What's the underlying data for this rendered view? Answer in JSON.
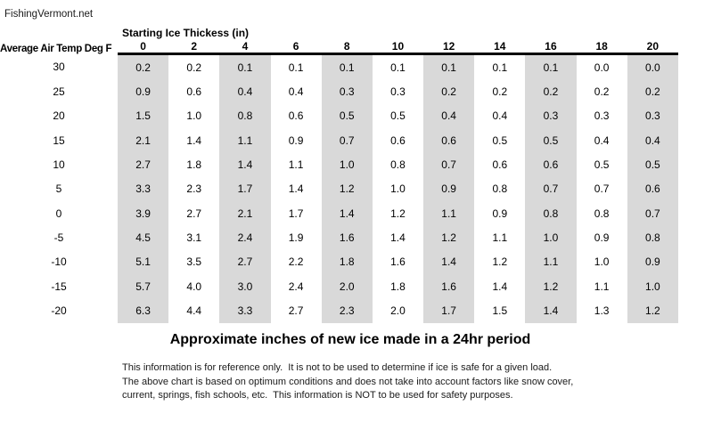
{
  "site_label": "FishingVermont.net",
  "chart_data": {
    "type": "table",
    "title": "Approximate inches of new ice made in a 24hr period",
    "column_group_label": "Starting Ice Thickess (in)",
    "row_group_label": "Average Air Temp Deg F",
    "columns": [
      "0",
      "2",
      "4",
      "6",
      "8",
      "10",
      "12",
      "14",
      "16",
      "18",
      "20"
    ],
    "rows": [
      {
        "temp": "30",
        "values": [
          "0.2",
          "0.2",
          "0.1",
          "0.1",
          "0.1",
          "0.1",
          "0.1",
          "0.1",
          "0.1",
          "0.0",
          "0.0"
        ]
      },
      {
        "temp": "25",
        "values": [
          "0.9",
          "0.6",
          "0.4",
          "0.4",
          "0.3",
          "0.3",
          "0.2",
          "0.2",
          "0.2",
          "0.2",
          "0.2"
        ]
      },
      {
        "temp": "20",
        "values": [
          "1.5",
          "1.0",
          "0.8",
          "0.6",
          "0.5",
          "0.5",
          "0.4",
          "0.4",
          "0.3",
          "0.3",
          "0.3"
        ]
      },
      {
        "temp": "15",
        "values": [
          "2.1",
          "1.4",
          "1.1",
          "0.9",
          "0.7",
          "0.6",
          "0.6",
          "0.5",
          "0.5",
          "0.4",
          "0.4"
        ]
      },
      {
        "temp": "10",
        "values": [
          "2.7",
          "1.8",
          "1.4",
          "1.1",
          "1.0",
          "0.8",
          "0.7",
          "0.6",
          "0.6",
          "0.5",
          "0.5"
        ]
      },
      {
        "temp": "5",
        "values": [
          "3.3",
          "2.3",
          "1.7",
          "1.4",
          "1.2",
          "1.0",
          "0.9",
          "0.8",
          "0.7",
          "0.7",
          "0.6"
        ]
      },
      {
        "temp": "0",
        "values": [
          "3.9",
          "2.7",
          "2.1",
          "1.7",
          "1.4",
          "1.2",
          "1.1",
          "0.9",
          "0.8",
          "0.8",
          "0.7"
        ]
      },
      {
        "temp": "-5",
        "values": [
          "4.5",
          "3.1",
          "2.4",
          "1.9",
          "1.6",
          "1.4",
          "1.2",
          "1.1",
          "1.0",
          "0.9",
          "0.8"
        ]
      },
      {
        "temp": "-10",
        "values": [
          "5.1",
          "3.5",
          "2.7",
          "2.2",
          "1.8",
          "1.6",
          "1.4",
          "1.2",
          "1.1",
          "1.0",
          "0.9"
        ]
      },
      {
        "temp": "-15",
        "values": [
          "5.7",
          "4.0",
          "3.0",
          "2.4",
          "2.0",
          "1.8",
          "1.6",
          "1.4",
          "1.2",
          "1.1",
          "1.0"
        ]
      },
      {
        "temp": "-20",
        "values": [
          "6.3",
          "4.4",
          "3.3",
          "2.7",
          "2.3",
          "2.0",
          "1.7",
          "1.5",
          "1.4",
          "1.3",
          "1.2"
        ]
      }
    ],
    "shaded_column_headers": [
      "0",
      "4",
      "8",
      "12",
      "16",
      "20"
    ],
    "layout_hints": {
      "grid": "off",
      "header_rule": "thick-black-under-column-headers"
    }
  },
  "disclaimer_lines": [
    "This information is for reference only.  It is not to be used to determine if ice is safe for a given load.",
    "The above chart is based on optimum conditions and does not take into account factors like snow cover,",
    "current, springs, fish schools, etc.  This information is NOT to be used for safety purposes."
  ],
  "colors": {
    "shaded_column": "#d9d9d9",
    "header_rule": "#000000",
    "text": "#000000",
    "background": "#ffffff"
  }
}
